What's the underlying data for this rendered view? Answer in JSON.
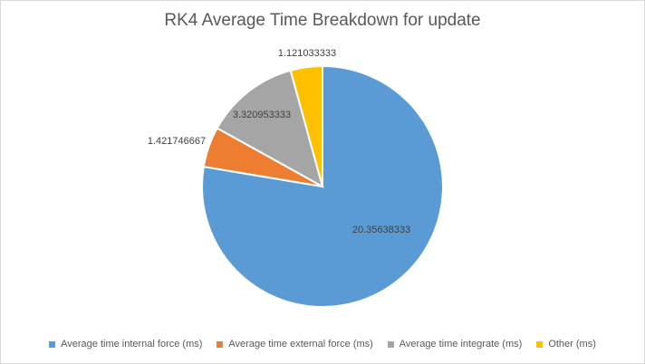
{
  "chart_data": {
    "type": "pie",
    "title": "RK4 Average Time Breakdown for update",
    "slices": [
      {
        "name": "Average time internal force (ms)",
        "value": 20.35638333,
        "label": "20.35638333",
        "color": "#5b9bd5"
      },
      {
        "name": "Average time external force (ms)",
        "value": 1.421746667,
        "label": "1.421746667",
        "color": "#ed7d31"
      },
      {
        "name": "Average time integrate (ms)",
        "value": 3.320953333,
        "label": "3.320953333",
        "color": "#a5a5a5"
      },
      {
        "name": "Other (ms)",
        "value": 1.121033333,
        "label": "1.121033333",
        "color": "#ffc000"
      }
    ],
    "legend_position": "bottom"
  }
}
